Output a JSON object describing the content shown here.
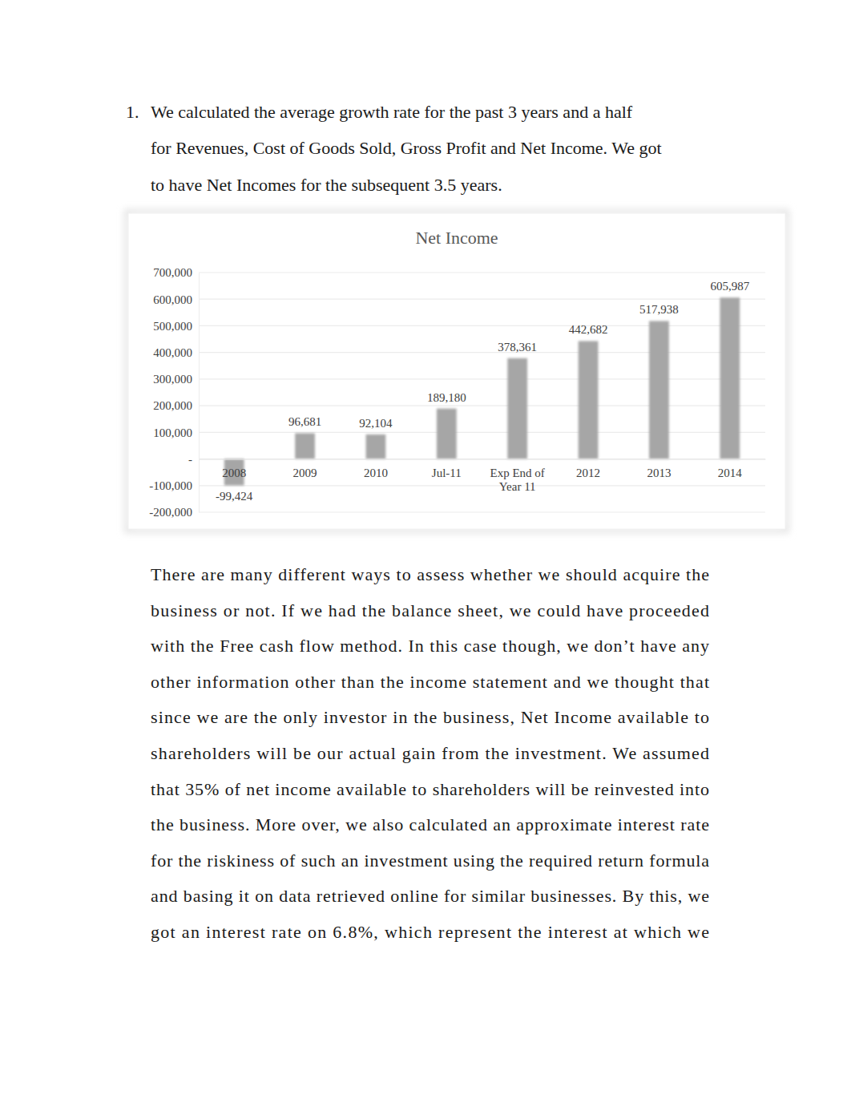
{
  "document": {
    "list_number": "1.",
    "paragraph_1": [
      "We calculated the average growth rate for the past 3 years and a half",
      "for Revenues, Cost of Goods Sold, Gross Profit and Net Income. We got",
      "to have Net Incomes for the subsequent 3.5 years."
    ],
    "paragraph_2": [
      "There are many different ways to assess whether we should acquire the",
      "business or not. If we had the balance sheet, we could have proceeded",
      "with the Free cash flow method. In this case though, we don’t have any",
      "other information other than the income statement and we thought that",
      "since we are the only investor in the business, Net Income available to",
      "shareholders will be our actual gain from the investment. We assumed",
      "that 35% of net income available to shareholders will be reinvested into",
      "the business. More over, we also calculated an approximate interest rate",
      "for the riskiness of such an investment using the required return formula",
      "and basing it on data retrieved online for similar businesses. By this, we",
      "got an interest rate on 6.8%, which represent the interest at which we"
    ]
  },
  "chart_data": {
    "type": "bar",
    "title": "Net Income",
    "categories": [
      "2008",
      "2009",
      "2010",
      "Jul-11",
      "Exp End of Year 11",
      "2012",
      "2013",
      "2014"
    ],
    "values": [
      -99424,
      96681,
      92104,
      189180,
      378361,
      442682,
      517938,
      605987
    ],
    "value_labels": [
      "-99,424",
      "96,681",
      "92,104",
      "189,180",
      "378,361",
      "442,682",
      "517,938",
      "605,987"
    ],
    "color": "#a6a6a6",
    "ylim": [
      -200000,
      700000
    ],
    "yticks": [
      {
        "value": -200000,
        "label": "-200,000"
      },
      {
        "value": -100000,
        "label": "-100,000"
      },
      {
        "value": 0,
        "label": "-"
      },
      {
        "value": 100000,
        "label": "100,000"
      },
      {
        "value": 200000,
        "label": "200,000"
      },
      {
        "value": 300000,
        "label": "300,000"
      },
      {
        "value": 400000,
        "label": "400,000"
      },
      {
        "value": 500000,
        "label": "500,000"
      },
      {
        "value": 600000,
        "label": "600,000"
      },
      {
        "value": 700000,
        "label": "700,000"
      }
    ],
    "grid": true,
    "data_labels": true
  }
}
